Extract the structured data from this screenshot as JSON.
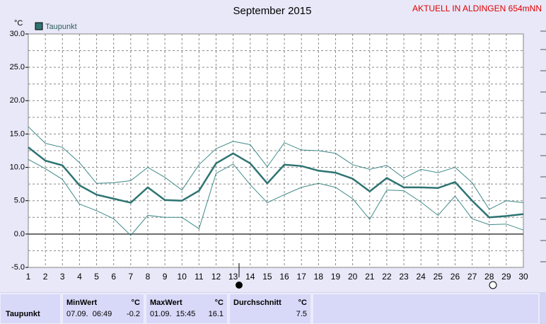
{
  "chart_data": {
    "type": "line",
    "title": "September 2015",
    "station": "AKTUELL IN ALDINGEN 654mNN",
    "y_unit": "°C",
    "x": [
      1,
      2,
      3,
      4,
      5,
      6,
      7,
      8,
      9,
      10,
      11,
      12,
      13,
      14,
      15,
      16,
      17,
      18,
      19,
      20,
      21,
      22,
      23,
      24,
      25,
      26,
      27,
      28,
      29,
      30
    ],
    "xlim": [
      1,
      30
    ],
    "xticks": [
      1,
      2,
      3,
      4,
      5,
      6,
      7,
      8,
      9,
      10,
      11,
      12,
      13,
      14,
      15,
      16,
      17,
      18,
      19,
      20,
      21,
      22,
      23,
      24,
      25,
      26,
      27,
      28,
      29,
      30
    ],
    "ylim": [
      -5,
      30
    ],
    "yticks": [
      {
        "value": 30,
        "label": "30.0"
      },
      {
        "value": 25,
        "label": "25.0"
      },
      {
        "value": 20,
        "label": "20.0"
      },
      {
        "value": 15,
        "label": "15.0"
      },
      {
        "value": 10,
        "label": "10.0"
      },
      {
        "value": 5,
        "label": "5.0"
      },
      {
        "value": 0,
        "label": "0.0"
      },
      {
        "value": -5,
        "label": "-5.0"
      }
    ],
    "minor_yticks": [
      27.5,
      22.5,
      17.5,
      12.5,
      7.5,
      2.5,
      -2.5
    ],
    "grid": true,
    "legend": "top-left",
    "series": [
      {
        "name": "Taupunkt",
        "color": "#2e7472",
        "width": 2.5,
        "values": [
          13.0,
          11.0,
          10.3,
          7.3,
          5.9,
          5.3,
          4.7,
          7.0,
          5.1,
          5.0,
          6.5,
          10.6,
          12.1,
          10.6,
          7.6,
          10.4,
          10.2,
          9.5,
          9.2,
          8.3,
          6.4,
          8.4,
          7.0,
          7.0,
          6.9,
          7.8,
          5.0,
          2.5,
          2.7,
          3.0
        ]
      },
      {
        "color": "#3f8a88",
        "width": 1,
        "values": [
          16.1,
          13.6,
          13.0,
          10.7,
          7.6,
          7.7,
          8.0,
          10.0,
          8.5,
          6.6,
          10.4,
          12.8,
          13.9,
          13.4,
          10.1,
          13.7,
          12.6,
          12.5,
          12.1,
          10.4,
          9.7,
          10.3,
          8.4,
          9.7,
          9.2,
          10.0,
          7.7,
          3.7,
          5.0,
          4.7
        ]
      },
      {
        "color": "#3f8a88",
        "width": 1,
        "values": [
          11.2,
          9.8,
          8.2,
          4.5,
          3.5,
          2.3,
          -0.2,
          2.8,
          2.5,
          2.5,
          0.8,
          9.1,
          10.5,
          7.4,
          4.7,
          5.9,
          7.0,
          7.6,
          7.0,
          5.3,
          2.2,
          6.6,
          6.5,
          4.8,
          2.8,
          5.7,
          2.3,
          1.4,
          1.5,
          0.6
        ]
      }
    ]
  },
  "stats": {
    "columns": [
      {
        "title": "MinWert",
        "unit": "°C"
      },
      {
        "title": "MaxWert",
        "unit": "°C"
      },
      {
        "title": "Durchschnitt",
        "unit": "°C"
      }
    ],
    "rows": [
      {
        "label": "Taupunkt",
        "cells": [
          {
            "time": "07.09.  06:49",
            "value": "-0.2"
          },
          {
            "time": "01.09.  15:45",
            "value": "16.1"
          },
          {
            "time": "",
            "value": "7.5"
          }
        ]
      }
    ]
  }
}
